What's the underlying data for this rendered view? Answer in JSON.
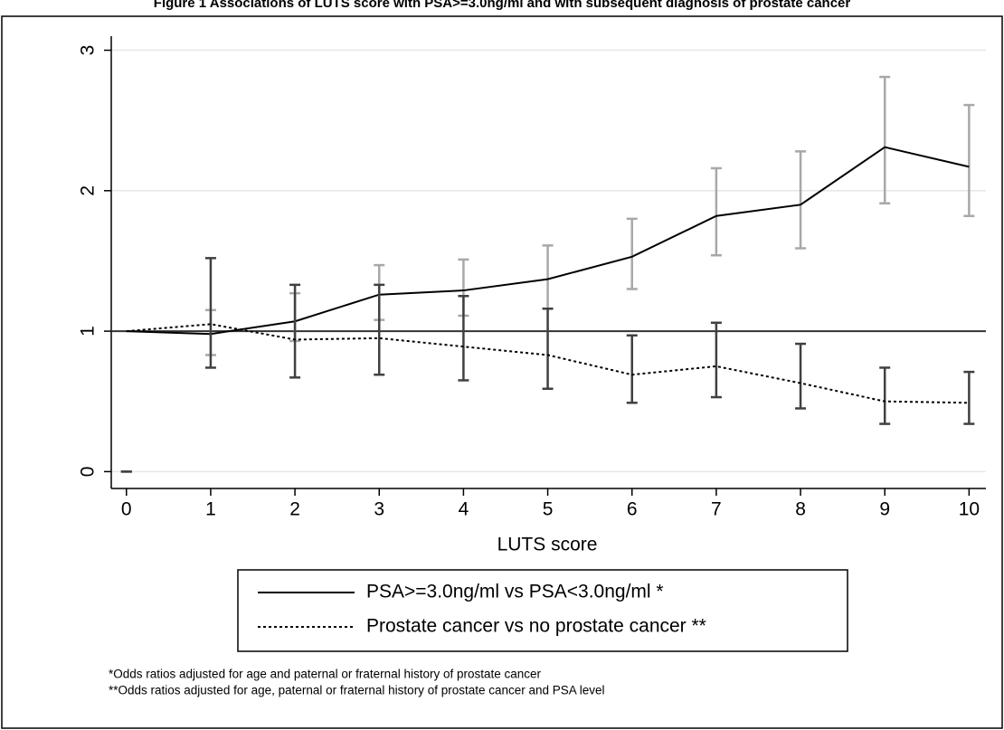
{
  "chart_data": {
    "type": "line",
    "title": "Figure 1 Associations of LUTS score with PSA>=3.0ng/ml and with subsequent diagnosis of prostate cancer",
    "x_label": "LUTS score",
    "x": [
      0,
      1,
      2,
      3,
      4,
      5,
      6,
      7,
      8,
      9,
      10
    ],
    "series": [
      {
        "name": "PSA>=3.0ng/ml vs PSA<3.0ng/ml  *",
        "color": "#000000",
        "dash": false,
        "error_color": "#a8a8a8",
        "values": [
          1,
          0.98,
          1.07,
          1.26,
          1.29,
          1.37,
          1.53,
          1.82,
          1.9,
          2.31,
          2.17
        ],
        "lower": [
          null,
          0.83,
          0.93,
          1.08,
          1.11,
          1.16,
          1.3,
          1.54,
          1.59,
          1.91,
          1.82
        ],
        "upper": [
          null,
          1.15,
          1.27,
          1.47,
          1.51,
          1.61,
          1.8,
          2.16,
          2.28,
          2.81,
          2.61
        ]
      },
      {
        "name": "Prostate cancer vs no prostate cancer  **",
        "color": "#000000",
        "dash": true,
        "error_color": "#404040",
        "values": [
          1,
          1.05,
          0.94,
          0.95,
          0.89,
          0.83,
          0.69,
          0.75,
          0.63,
          0.5,
          0.49
        ],
        "lower": [
          0,
          0.74,
          0.67,
          0.69,
          0.65,
          0.59,
          0.49,
          0.53,
          0.45,
          0.34,
          0.34
        ],
        "upper": [
          0,
          1.52,
          1.33,
          1.33,
          1.25,
          1.16,
          0.97,
          1.06,
          0.91,
          0.74,
          0.71
        ]
      }
    ],
    "reference_line": 1,
    "xlim": [
      -0.18,
      10.2
    ],
    "xticks": [
      0,
      1,
      2,
      3,
      4,
      5,
      6,
      7,
      8,
      9,
      10
    ],
    "ylim": [
      -0.12,
      3.1
    ],
    "yticks": [
      0,
      1,
      2,
      3
    ],
    "grid": true,
    "notes": [
      "*Odds ratios adjusted for age and paternal or fraternal history of prostate cancer",
      "**Odds ratios adjusted for age, paternal or fraternal history of prostate cancer and PSA level"
    ]
  }
}
